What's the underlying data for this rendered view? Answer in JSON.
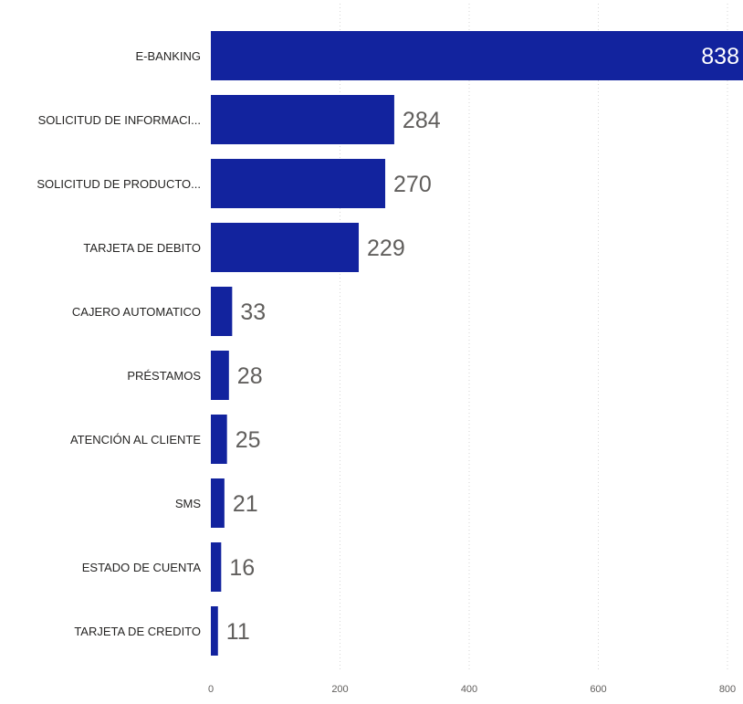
{
  "chart_data": {
    "type": "bar",
    "orientation": "horizontal",
    "categories": [
      "E-BANKING",
      "SOLICITUD DE INFORMACI...",
      "SOLICITUD DE PRODUCTO...",
      "TARJETA DE DEBITO",
      "CAJERO AUTOMATICO",
      "PRÉSTAMOS",
      "ATENCIÓN AL CLIENTE",
      "SMS",
      "ESTADO DE CUENTA",
      "TARJETA DE CREDITO"
    ],
    "values": [
      838,
      284,
      270,
      229,
      33,
      28,
      25,
      21,
      16,
      11
    ],
    "data_labels": [
      "838",
      "284",
      "270",
      "229",
      "33",
      "28",
      "25",
      "21",
      "16",
      "11"
    ],
    "x_ticks": [
      0,
      200,
      400,
      600,
      800
    ],
    "x_tick_labels": [
      "0",
      "200",
      "400",
      "600",
      "800"
    ],
    "xlim": [
      0,
      828
    ],
    "grid": "vertical-dotted",
    "title": "",
    "xlabel": "",
    "ylabel": "",
    "colors": {
      "bar": "#12239e",
      "inside_label": "#ffffff",
      "outside_label": "#605e5c",
      "category_label": "#252423",
      "tick_label": "#605e5c",
      "grid": "#d6d6d6"
    }
  }
}
